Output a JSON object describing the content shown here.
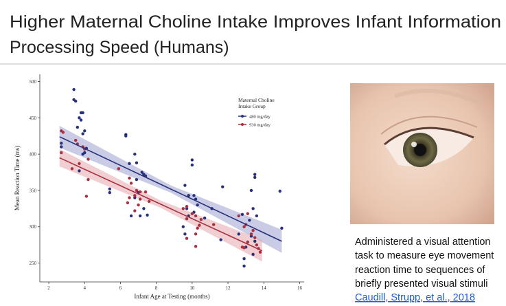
{
  "slide": {
    "title_lines": [
      "Higher Maternal Choline Intake Improves Infant Information",
      "Processing Speed (Humans)"
    ],
    "caption_lines": [
      "Administered a visual attention",
      "task to measure eye movement",
      "reaction time to sequences of",
      "briefly presented visual stimuli"
    ],
    "citation": "Caudill, Strupp, et al., 2018"
  },
  "chart_data": {
    "type": "scatter",
    "x_label": "Infant Age at Testing (months)",
    "y_label": "Mean Reaction Time (ms)",
    "legend_title": [
      "Maternal Choline",
      "Intake Group"
    ],
    "xlim": [
      1.5,
      16.25
    ],
    "ylim": [
      224,
      510
    ],
    "xticks": [
      2,
      4,
      6,
      8,
      10,
      12,
      14,
      16
    ],
    "yticks": [
      250,
      300,
      350,
      400,
      450,
      500
    ],
    "series": [
      {
        "name": "480 mg/day",
        "color": "#27307a",
        "x": [
          3.4,
          3.4,
          3.5,
          3.8,
          3.9,
          3.7,
          3.8,
          4.0,
          3.9,
          3.6,
          2.7,
          2.7,
          3.9,
          4.1,
          4.0,
          3.9,
          3.7,
          6.3,
          6.3,
          5.4,
          5.4,
          6.5,
          6.8,
          6.9,
          7.2,
          7.3,
          7.4,
          6.9,
          7.0,
          6.8,
          7.3,
          6.6,
          7.1,
          7.5,
          10.0,
          10.0,
          9.6,
          9.8,
          10.1,
          10.2,
          10.3,
          9.7,
          10.1,
          9.8,
          9.5,
          9.6,
          11.7,
          11.1,
          10.7,
          11.6,
          12.8,
          13.2,
          13.5,
          13.5,
          13.3,
          13.4,
          13.6,
          13.5,
          13.4,
          12.9,
          12.9,
          14.9,
          15.0,
          13.0,
          12.6,
          13.3
        ],
        "values": [
          489,
          475,
          473,
          457,
          457,
          450,
          447,
          432,
          428,
          437,
          415,
          410,
          410,
          408,
          402,
          400,
          377,
          427,
          425,
          352,
          347,
          387,
          400,
          388,
          375,
          372,
          370,
          365,
          347,
          340,
          325,
          315,
          315,
          316,
          392,
          385,
          357,
          343,
          343,
          338,
          330,
          325,
          320,
          315,
          300,
          290,
          355,
          325,
          312,
          282,
          317,
          309,
          372,
          368,
          350,
          325,
          315,
          280,
          262,
          246,
          256,
          349,
          298,
          272,
          290,
          287
        ]
      },
      {
        "name": "930 mg/day",
        "color": "#a8303f",
        "x": [
          2.7,
          2.8,
          2.7,
          3.5,
          3.6,
          3.9,
          4.0,
          4.2,
          3.7,
          4.2,
          3.3,
          4.1,
          6.5,
          6.6,
          6.9,
          6.8,
          7.1,
          7.4,
          6.5,
          6.4,
          6.8,
          7.0,
          7.6,
          7.1,
          5.9,
          9.7,
          9.5,
          10.0,
          10.2,
          9.7,
          10.4,
          10.3,
          10.2,
          9.7,
          10.2,
          10.5,
          11.2,
          12.6,
          12.9,
          13.1,
          13.0,
          13.4,
          13.3,
          13.5,
          13.1,
          13.6,
          13.7,
          13.8,
          12.8,
          12.9
        ],
        "values": [
          432,
          430,
          402,
          419,
          414,
          410,
          407,
          393,
          387,
          365,
          380,
          342,
          367,
          360,
          350,
          343,
          348,
          348,
          340,
          333,
          322,
          330,
          335,
          338,
          380,
          328,
          325,
          318,
          315,
          311,
          302,
          298,
          290,
          284,
          273,
          310,
          303,
          315,
          300,
          318,
          303,
          295,
          290,
          285,
          279,
          275,
          270,
          265,
          272,
          271
        ]
      }
    ],
    "fits": [
      {
        "color": "#27307a",
        "band_color": "#9fa3cf",
        "x": [
          2.6,
          8.8,
          15.0
        ],
        "values": [
          424,
          352,
          280
        ],
        "lower": [
          409,
          347,
          264
        ],
        "upper": [
          439,
          357,
          296
        ]
      },
      {
        "color": "#a8303f",
        "band_color": "#e3a5ad",
        "x": [
          2.6,
          8.25,
          13.9
        ],
        "values": [
          395,
          331,
          267
        ],
        "lower": [
          383,
          326,
          252
        ],
        "upper": [
          407,
          336,
          282
        ]
      }
    ]
  }
}
